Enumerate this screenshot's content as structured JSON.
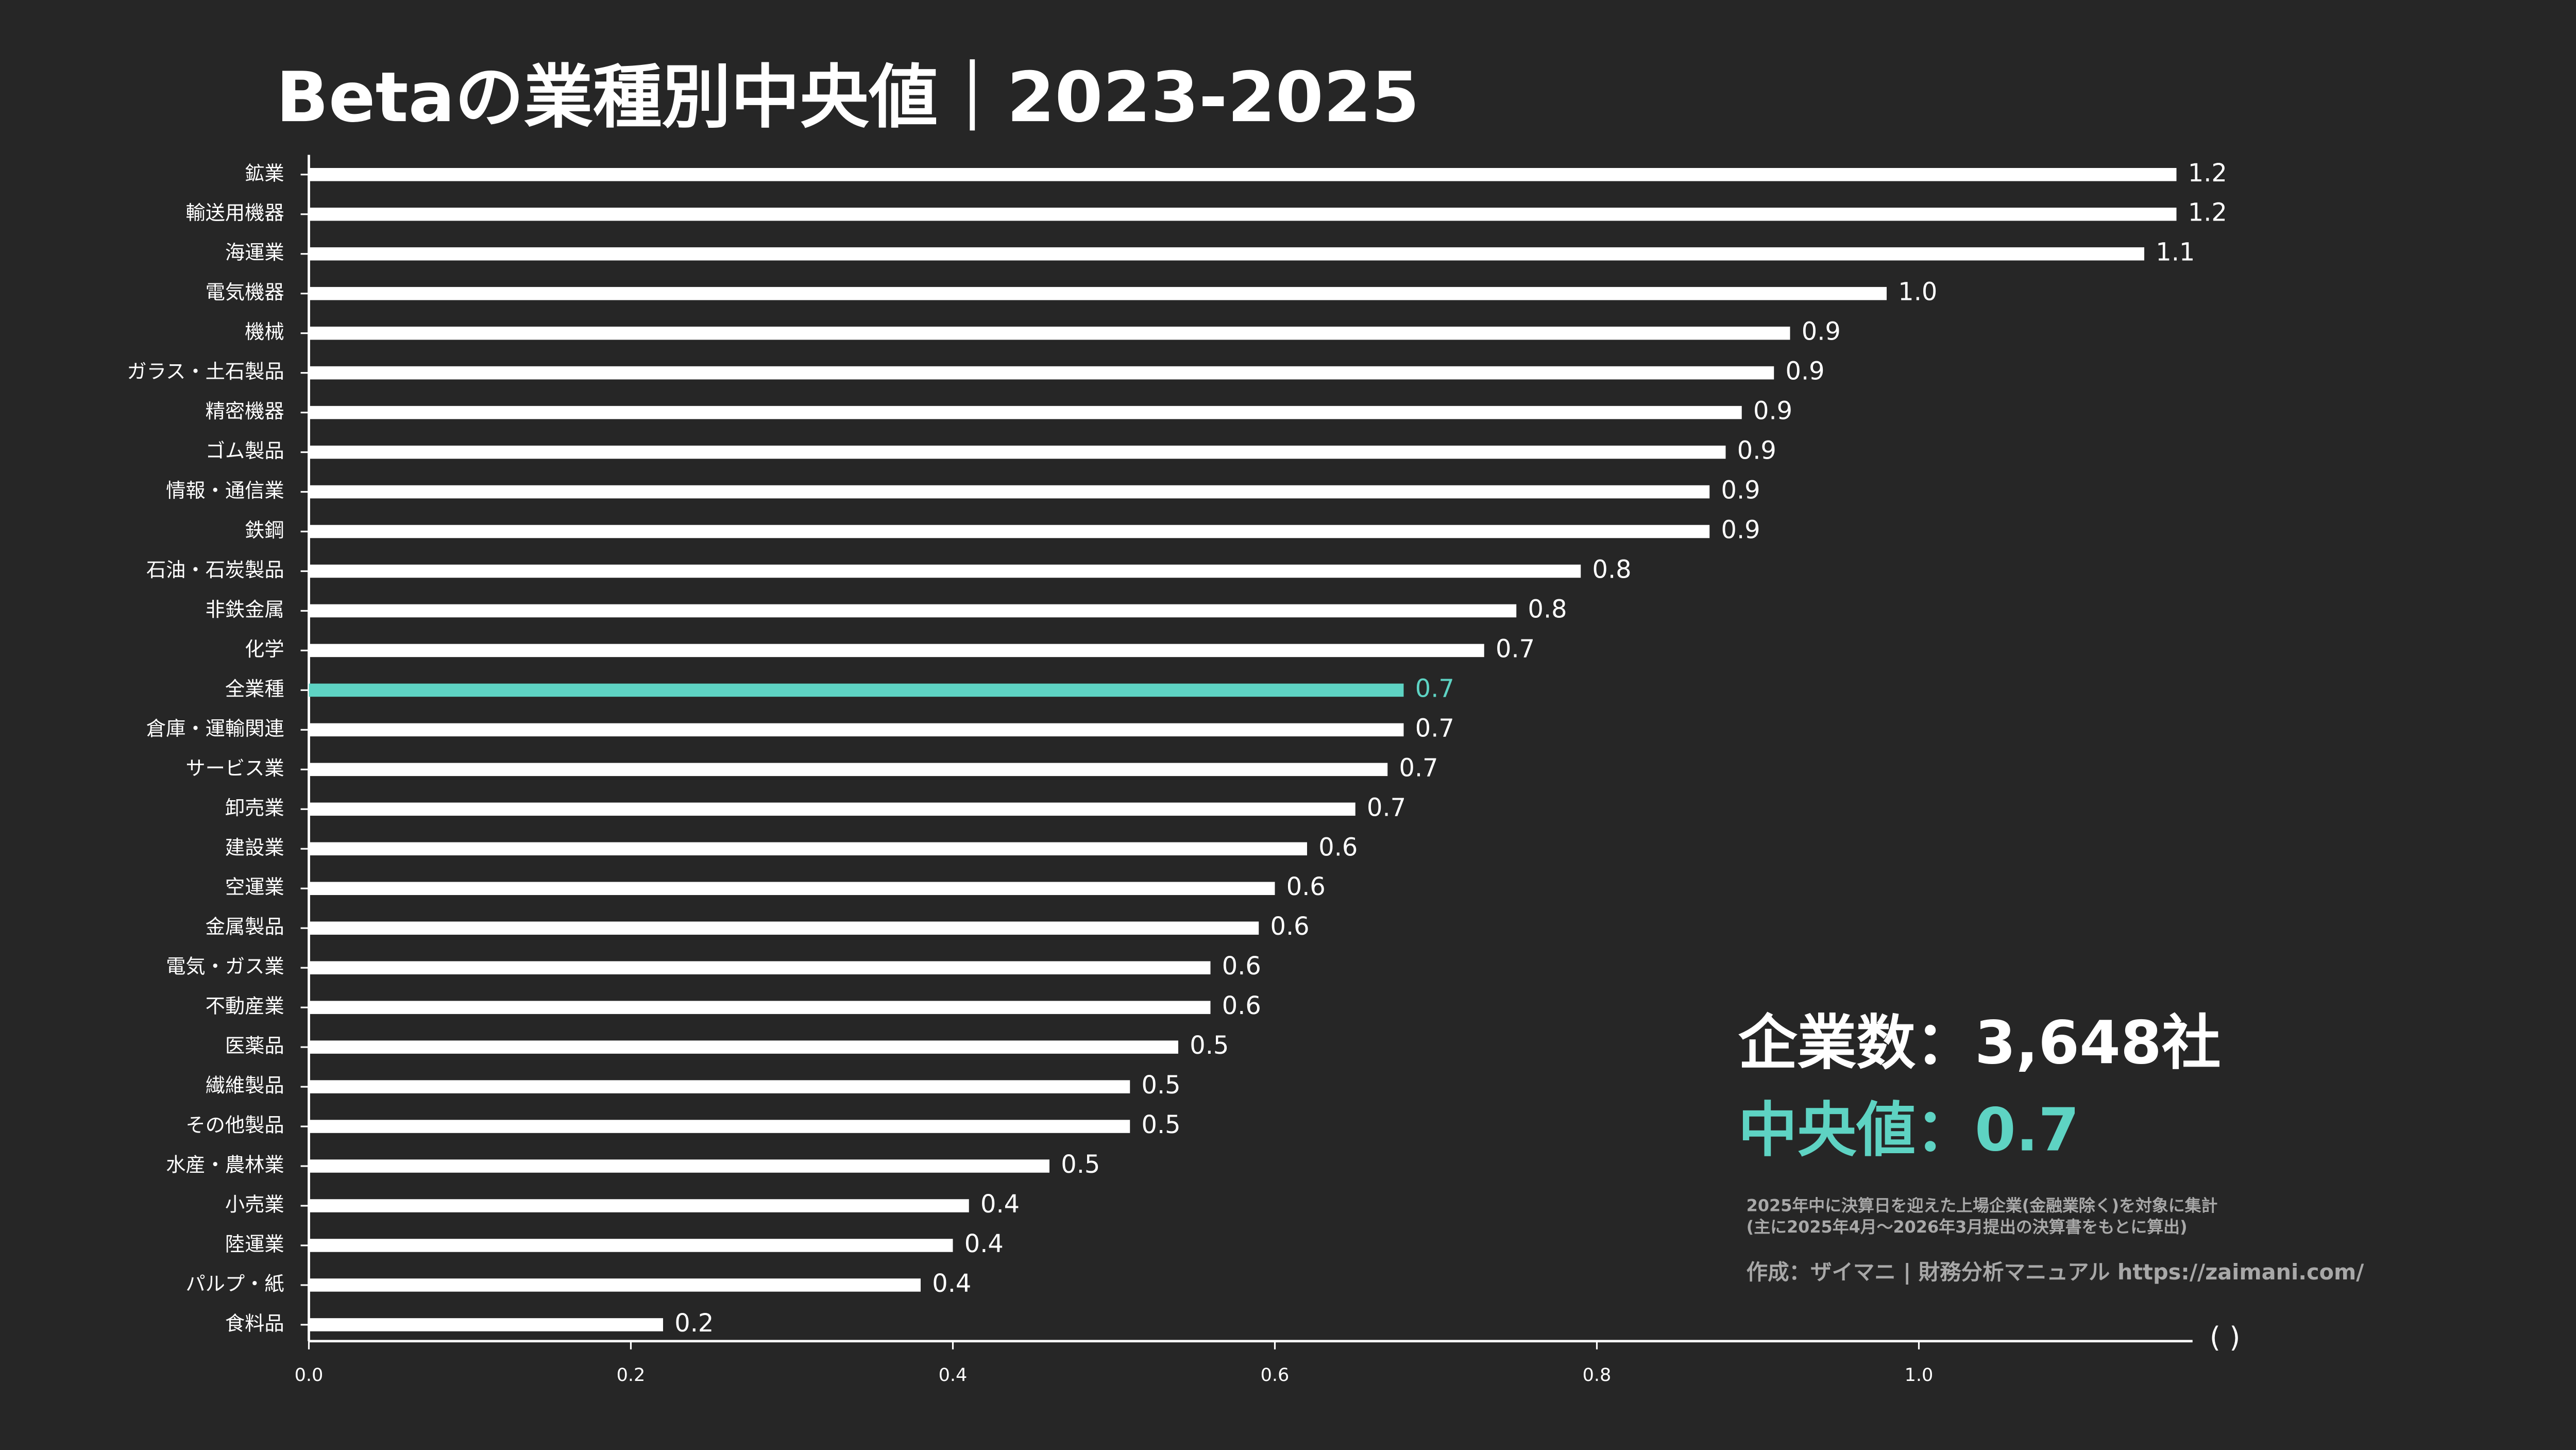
{
  "chart_data": {
    "type": "bar",
    "orientation": "horizontal",
    "title": "Betaの業種別中央値｜2023-2025",
    "categories": [
      "鉱業",
      "輸送用機器",
      "海運業",
      "電気機器",
      "機械",
      "ガラス・土石製品",
      "精密機器",
      "ゴム製品",
      "情報・通信業",
      "鉄鋼",
      "石油・石炭製品",
      "非鉄金属",
      "化学",
      "全業種",
      "倉庫・運輸関連",
      "サービス業",
      "卸売業",
      "建設業",
      "空運業",
      "金属製品",
      "電気・ガス業",
      "不動産業",
      "医薬品",
      "繊維製品",
      "その他製品",
      "水産・農林業",
      "小売業",
      "陸運業",
      "パルプ・紙",
      "食料品"
    ],
    "values": [
      1.16,
      1.16,
      1.14,
      0.98,
      0.92,
      0.91,
      0.89,
      0.88,
      0.87,
      0.87,
      0.79,
      0.75,
      0.73,
      0.68,
      0.68,
      0.67,
      0.65,
      0.62,
      0.6,
      0.59,
      0.56,
      0.56,
      0.54,
      0.51,
      0.51,
      0.46,
      0.41,
      0.4,
      0.38,
      0.22
    ],
    "value_labels": [
      "1.2",
      "1.2",
      "1.1",
      "1.0",
      "0.9",
      "0.9",
      "0.9",
      "0.9",
      "0.9",
      "0.9",
      "0.8",
      "0.8",
      "0.7",
      "0.7",
      "0.7",
      "0.7",
      "0.7",
      "0.6",
      "0.6",
      "0.6",
      "0.6",
      "0.6",
      "0.5",
      "0.5",
      "0.5",
      "0.5",
      "0.4",
      "0.4",
      "0.4",
      "0.2"
    ],
    "color": "#ffffff",
    "highlight": "全業種",
    "highlight_color": "#5ed3c3",
    "xlim": [
      0,
      1.17
    ],
    "xticks": [
      {
        "value": 0,
        "label": "0.0"
      },
      0.2,
      0.4,
      0.6,
      0.8,
      {
        "value": 1,
        "label": "1.0"
      }
    ],
    "xlabel": "( )",
    "annotations": [
      "企業数：3,648社",
      "中央値：0.7",
      "2025年中に決算日を迎えた上場企業(金融業除く)を対象に集計",
      "(主に2025年4月～2026年3月提出の決算書をもとに算出)",
      "作成：ザイマニ | 財務分析マニュアル https://zaimani.com/"
    ]
  }
}
